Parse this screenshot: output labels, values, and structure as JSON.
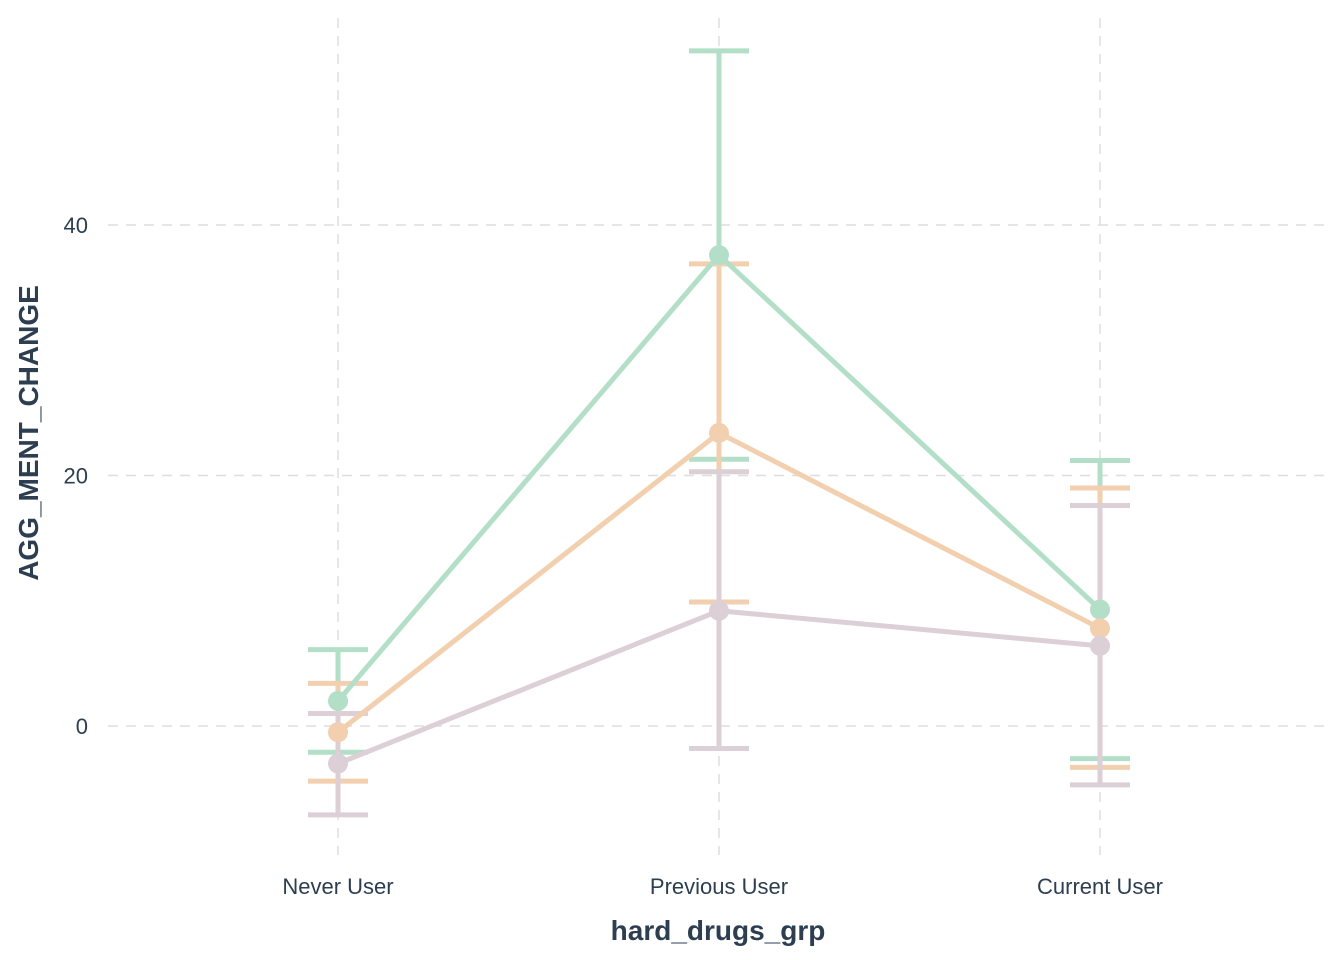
{
  "chart_data": {
    "type": "line",
    "xlabel": "hard_drugs_grp",
    "ylabel": "AGG_MENT_CHANGE",
    "categories": [
      "Never User",
      "Previous User",
      "Current User"
    ],
    "ylim": [
      -10,
      57
    ],
    "yticks": [
      0,
      20,
      40
    ],
    "grid": "dashed",
    "legend": "none",
    "series": [
      {
        "color": "#b3dfc8",
        "values": [
          2.0,
          37.6,
          9.3
        ],
        "lower": [
          -2.1,
          21.3,
          -2.6
        ],
        "upper": [
          6.1,
          53.9,
          21.2
        ]
      },
      {
        "color": "#f2cfae",
        "values": [
          -0.5,
          23.4,
          7.8
        ],
        "lower": [
          -4.4,
          9.9,
          -3.3
        ],
        "upper": [
          3.4,
          36.9,
          19.0
        ]
      },
      {
        "color": "#dccfd5",
        "values": [
          -3.0,
          9.2,
          6.4
        ],
        "lower": [
          -7.1,
          -1.8,
          -4.7
        ],
        "upper": [
          1.0,
          20.3,
          17.6
        ]
      }
    ]
  }
}
